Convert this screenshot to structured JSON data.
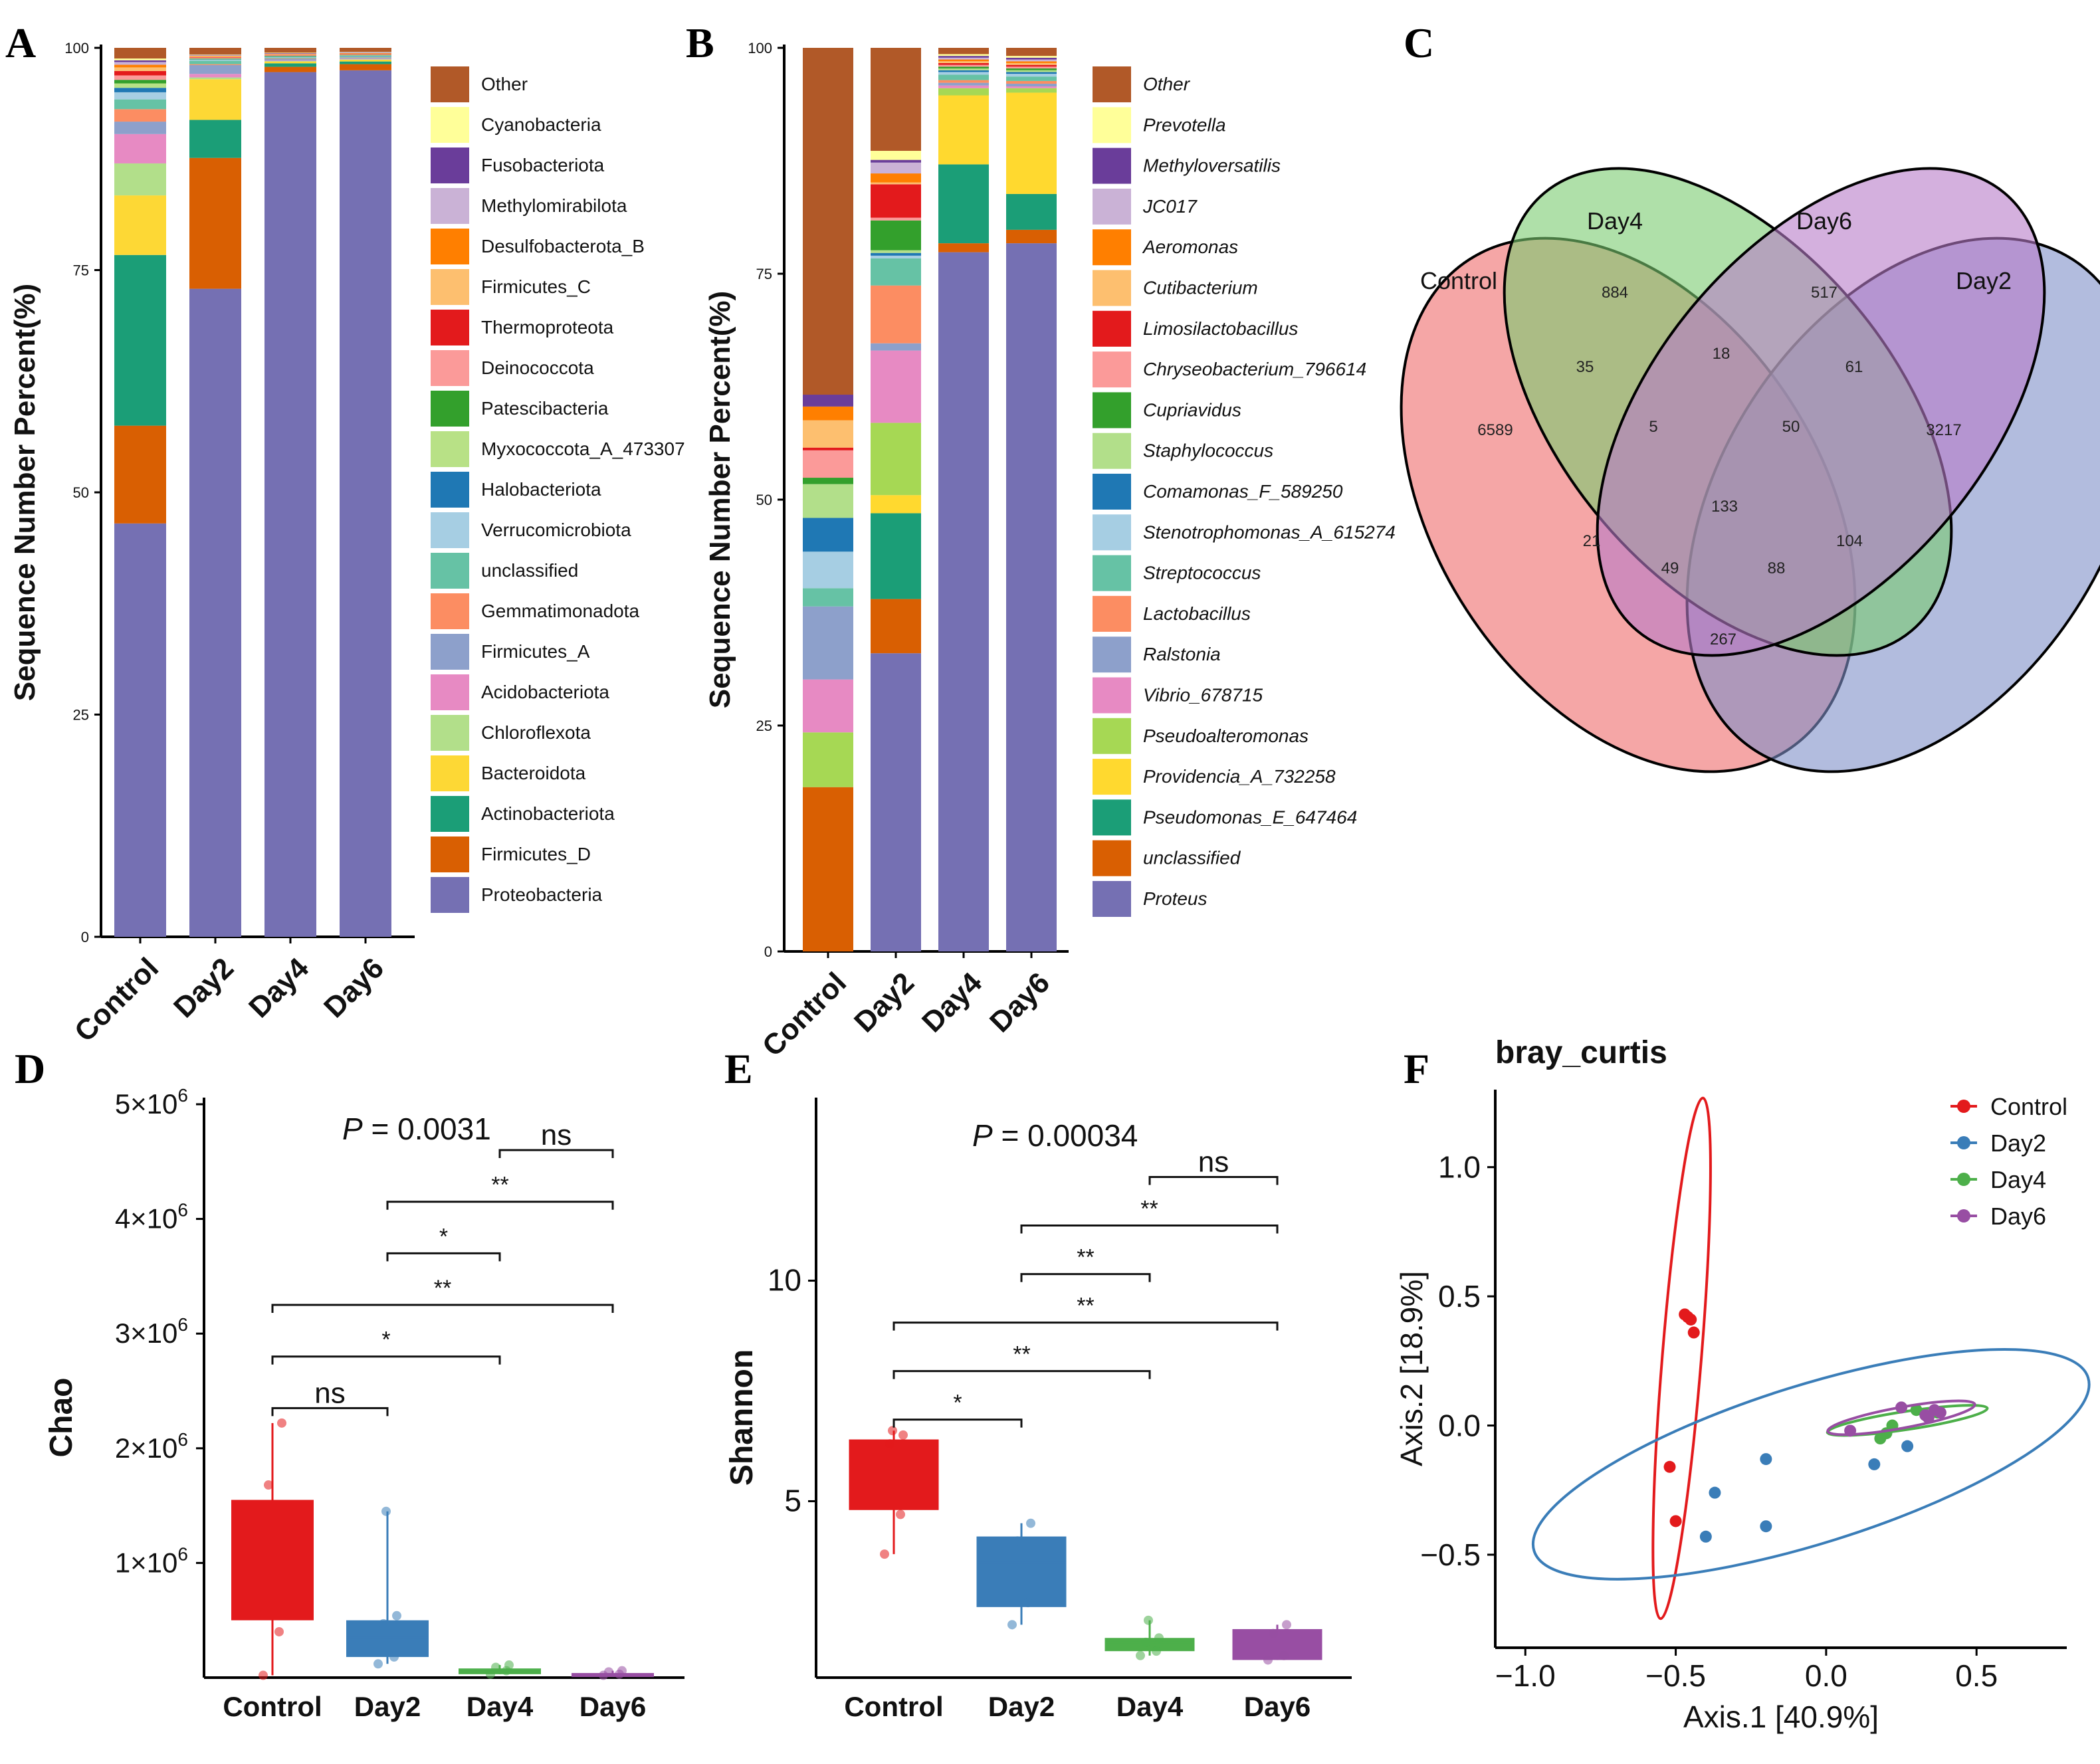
{
  "colors": {
    "Control": "#E31A1C",
    "Day2": "#3A7DB8",
    "Day4": "#4DAF4A",
    "Day6": "#984EA3",
    "Proteobacteria": "#7570B3",
    "Firmicutes_D": "#D95F02",
    "Actinobacteriota": "#1B9E77",
    "Bacteroidota": "#FDD835",
    "Chloroflexota": "#B2DF8A",
    "Acidobacteriota": "#E78AC3",
    "Firmicutes_A": "#8DA0CB",
    "Gemmatimonadota": "#FC8D62",
    "unclassified_p": "#66C2A5",
    "Verrucomicrobiota": "#A6CEE3",
    "Halobacteriota": "#1F78B4",
    "Myxococcota_A_473307": "#B8E186",
    "Patescibacteria": "#33A02C",
    "Deinococcota": "#FB9A99",
    "Thermoproteota": "#E31A1C",
    "Firmicutes_C": "#FDBF6F",
    "Desulfobacterota_B": "#FF7F00",
    "Methylomirabilota": "#CAB2D6",
    "Fusobacteriota": "#6A3D9A",
    "Cyanobacteria": "#FFFF99",
    "Other": "#B15928"
  },
  "panel_labels": [
    "A",
    "B",
    "C",
    "D",
    "E",
    "F"
  ],
  "chart_data": [
    {
      "id": "A",
      "type": "bar",
      "stacked": true,
      "ylabel": "Sequence Number Percent(%)",
      "ylim": [
        0,
        100
      ],
      "yticks": [
        "0",
        "25",
        "50",
        "75",
        "100"
      ],
      "categories": [
        "Control",
        "Day2",
        "Day4",
        "Day6"
      ],
      "legend": [
        "Other",
        "Cyanobacteria",
        "Fusobacteriota",
        "Methylomirabilota",
        "Desulfobacterota_B",
        "Firmicutes_C",
        "Thermoproteota",
        "Deinococcota",
        "Patescibacteria",
        "Myxococcota_A_473307",
        "Halobacteriota",
        "Verrucomicrobiota",
        "unclassified",
        "Gemmatimonadota",
        "Firmicutes_A",
        "Acidobacteriota",
        "Chloroflexota",
        "Bacteroidota",
        "Actinobacteriota",
        "Firmicutes_D",
        "Proteobacteria"
      ],
      "series": [
        {
          "name": "Proteobacteria",
          "values": [
            46.5,
            73.3,
            97.9,
            98.2
          ]
        },
        {
          "name": "Firmicutes_D",
          "values": [
            11.0,
            14.8,
            0.6,
            0.7
          ]
        },
        {
          "name": "Actinobacteriota",
          "values": [
            19.2,
            4.3,
            0.4,
            0.3
          ]
        },
        {
          "name": "Bacteroidota",
          "values": [
            6.7,
            4.6,
            0.2,
            0.2
          ]
        },
        {
          "name": "Chloroflexota",
          "values": [
            3.6,
            0.2,
            0.05,
            0.05
          ]
        },
        {
          "name": "Acidobacteriota",
          "values": [
            3.3,
            0.4,
            0.05,
            0.05
          ]
        },
        {
          "name": "Firmicutes_A",
          "values": [
            1.4,
            1.0,
            0.2,
            0.1
          ]
        },
        {
          "name": "Gemmatimonadota",
          "values": [
            1.4,
            0.1,
            0.05,
            0.05
          ]
        },
        {
          "name": "unclassified",
          "values": [
            1.1,
            0.4,
            0.1,
            0.1
          ]
        },
        {
          "name": "Verrucomicrobiota",
          "values": [
            0.8,
            0.1,
            0.05,
            0.05
          ]
        },
        {
          "name": "Halobacteriota",
          "values": [
            0.5,
            0.05,
            0.05,
            0.05
          ]
        },
        {
          "name": "Myxococcota_A_473307",
          "values": [
            0.5,
            0.05,
            0.05,
            0.05
          ]
        },
        {
          "name": "Patescibacteria",
          "values": [
            0.4,
            0.05,
            0.05,
            0.05
          ]
        },
        {
          "name": "Deinococcota",
          "values": [
            0.5,
            0.1,
            0.05,
            0.05
          ]
        },
        {
          "name": "Thermoproteota",
          "values": [
            0.5,
            0.05,
            0.05,
            0.05
          ]
        },
        {
          "name": "Firmicutes_C",
          "values": [
            0.4,
            0.1,
            0.05,
            0.05
          ]
        },
        {
          "name": "Desulfobacterota_B",
          "values": [
            0.3,
            0.05,
            0.05,
            0.05
          ]
        },
        {
          "name": "Methylomirabilota",
          "values": [
            0.3,
            0.05,
            0.05,
            0.05
          ]
        },
        {
          "name": "Fusobacteriota",
          "values": [
            0.2,
            0.05,
            0.05,
            0.05
          ]
        },
        {
          "name": "Cyanobacteria",
          "values": [
            0.2,
            0.05,
            0.05,
            0.05
          ]
        },
        {
          "name": "Other",
          "values": [
            1.2,
            0.75,
            0.55,
            0.45
          ]
        }
      ]
    },
    {
      "id": "B",
      "type": "bar",
      "stacked": true,
      "ylabel": "Sequence Number Percent(%)",
      "ylim": [
        0,
        100
      ],
      "yticks": [
        "0",
        "25",
        "50",
        "75",
        "100"
      ],
      "categories": [
        "Control",
        "Day2",
        "Day4",
        "Day6"
      ],
      "legend": [
        "Other",
        "Prevotella",
        "Methyloversatilis",
        "JC017",
        "Aeromonas",
        "Cutibacterium",
        "Limosilactobacillus",
        "Chryseobacterium_796614",
        "Cupriavidus",
        "Staphylococcus",
        "Comamonas_F_589250",
        "Stenotrophomonas_A_615274",
        "Streptococcus",
        "Lactobacillus",
        "Ralstonia",
        "Vibrio_678715",
        "Pseudoalteromonas",
        "Providencia_A_732258",
        "Pseudomonas_E_647464",
        "unclassified",
        "Proteus"
      ],
      "series": [
        {
          "name": "Proteus",
          "values": [
            0,
            33.0,
            78.0,
            79.0
          ]
        },
        {
          "name": "unclassified",
          "values": [
            18.0,
            6.0,
            1.0,
            1.5
          ]
        },
        {
          "name": "Pseudomonas_E_647464",
          "values": [
            0,
            9.5,
            8.8,
            4.0
          ]
        },
        {
          "name": "Providencia_A_732258",
          "values": [
            0,
            2.0,
            7.7,
            11.3
          ]
        },
        {
          "name": "Pseudoalteromonas",
          "values": [
            6.0,
            8.0,
            0.8,
            0.5
          ]
        },
        {
          "name": "Vibrio_678715",
          "values": [
            5.8,
            8.0,
            0.3,
            0.2
          ]
        },
        {
          "name": "Ralstonia",
          "values": [
            8.0,
            0.8,
            0.3,
            0.3
          ]
        },
        {
          "name": "Lactobacillus",
          "values": [
            0,
            6.4,
            0.3,
            0.3
          ]
        },
        {
          "name": "Streptococcus",
          "values": [
            2.0,
            3.0,
            0.6,
            0.5
          ]
        },
        {
          "name": "Stenotrophomonas_A_615274",
          "values": [
            4.0,
            0.3,
            0.3,
            0.3
          ]
        },
        {
          "name": "Comamonas_F_589250",
          "values": [
            3.7,
            0.3,
            0.2,
            0.2
          ]
        },
        {
          "name": "Staphylococcus",
          "values": [
            3.7,
            0.3,
            0.2,
            0.2
          ]
        },
        {
          "name": "Cupriavidus",
          "values": [
            0.7,
            3.3,
            0.2,
            0.2
          ]
        },
        {
          "name": "Chryseobacterium_796614",
          "values": [
            3.0,
            0.3,
            0.2,
            0.2
          ]
        },
        {
          "name": "Limosilactobacillus",
          "values": [
            0.3,
            3.7,
            0.2,
            0.2
          ]
        },
        {
          "name": "Cutibacterium",
          "values": [
            3.0,
            0.2,
            0.2,
            0.2
          ]
        },
        {
          "name": "Aeromonas",
          "values": [
            1.5,
            1.0,
            0.2,
            0.2
          ]
        },
        {
          "name": "JC017",
          "values": [
            0,
            1.2,
            0.2,
            0.2
          ]
        },
        {
          "name": "Methyloversatilis",
          "values": [
            1.3,
            0.3,
            0.2,
            0.2
          ]
        },
        {
          "name": "Prevotella",
          "values": [
            0,
            1.0,
            0.2,
            0.2
          ]
        },
        {
          "name": "Other",
          "values": [
            38.0,
            11.4,
            0.7,
            0.9
          ]
        }
      ]
    },
    {
      "id": "C",
      "type": "venn",
      "sets": [
        "Control",
        "Day4",
        "Day6",
        "Day2"
      ],
      "regions": [
        {
          "sets": [
            "Control"
          ],
          "value": 6589
        },
        {
          "sets": [
            "Day4"
          ],
          "value": 884
        },
        {
          "sets": [
            "Day6"
          ],
          "value": 517
        },
        {
          "sets": [
            "Day2"
          ],
          "value": 3217
        },
        {
          "sets": [
            "Control",
            "Day4"
          ],
          "value": 35
        },
        {
          "sets": [
            "Day4",
            "Day6"
          ],
          "value": 18
        },
        {
          "sets": [
            "Day6",
            "Day2"
          ],
          "value": 61
        },
        {
          "sets": [
            "Control",
            "Day4",
            "Day6"
          ],
          "value": 5
        },
        {
          "sets": [
            "Day4",
            "Day6",
            "Day2"
          ],
          "value": 50
        },
        {
          "sets": [
            "Control",
            "Day4",
            "Day6",
            "Day2"
          ],
          "value": 133
        },
        {
          "sets": [
            "Control",
            "Day6"
          ],
          "value": 21
        },
        {
          "sets": [
            "Day4",
            "Day2"
          ],
          "value": 104
        },
        {
          "sets": [
            "Control",
            "Day6",
            "Day2"
          ],
          "value": 49
        },
        {
          "sets": [
            "Control",
            "Day4",
            "Day2"
          ],
          "value": 88
        },
        {
          "sets": [
            "Control",
            "Day2"
          ],
          "value": 267
        }
      ]
    },
    {
      "id": "D",
      "type": "box",
      "ylabel": "Chao",
      "ylim": [
        0,
        5000000
      ],
      "yticks": [
        {
          "value": 1000000,
          "mant": "1",
          "exp": "6"
        },
        {
          "value": 2000000,
          "mant": "2",
          "exp": "6"
        },
        {
          "value": 3000000,
          "mant": "3",
          "exp": "6"
        },
        {
          "value": 4000000,
          "mant": "4",
          "exp": "6"
        },
        {
          "value": 5000000,
          "mant": "5",
          "exp": "6"
        }
      ],
      "categories": [
        "Control",
        "Day2",
        "Day4",
        "Day6"
      ],
      "p_text": {
        "label": "P",
        "rest": " = 0.0031"
      },
      "boxes": [
        {
          "group": "Control",
          "min": 20000,
          "q1": 500000,
          "median": 1100000,
          "q3": 1550000,
          "max": 2220000,
          "points": [
            20000,
            400000,
            1680000,
            2220000
          ]
        },
        {
          "group": "Day2",
          "min": 120000,
          "q1": 180000,
          "median": 350000,
          "q3": 500000,
          "max": 1450000,
          "points": [
            120000,
            180000,
            470000,
            540000,
            1450000
          ]
        },
        {
          "group": "Day4",
          "min": 30000,
          "q1": 30000,
          "median": 50000,
          "q3": 80000,
          "max": 110000,
          "points": [
            30000,
            60000,
            90000,
            110000
          ]
        },
        {
          "group": "Day6",
          "min": 20000,
          "q1": 20000,
          "median": 30000,
          "q3": 40000,
          "max": 60000,
          "points": [
            20000,
            30000,
            50000,
            60000
          ]
        }
      ],
      "significance": [
        {
          "from": 0,
          "to": 1,
          "label": "ns",
          "level": 2350000
        },
        {
          "from": 0,
          "to": 2,
          "label": "*",
          "level": 2800000
        },
        {
          "from": 0,
          "to": 3,
          "label": "**",
          "level": 3250000
        },
        {
          "from": 1,
          "to": 2,
          "label": "*",
          "level": 3700000
        },
        {
          "from": 1,
          "to": 3,
          "label": "**",
          "level": 4150000
        },
        {
          "from": 2,
          "to": 3,
          "label": "ns",
          "level": 4600000
        }
      ]
    },
    {
      "id": "E",
      "type": "box",
      "ylabel": "Shannon",
      "ylim": [
        1,
        14
      ],
      "yticks": [
        {
          "value": 5,
          "label": "5"
        },
        {
          "value": 10,
          "label": "10"
        }
      ],
      "categories": [
        "Control",
        "Day2",
        "Day4",
        "Day6"
      ],
      "p_text": {
        "label": "P",
        "rest": " = 0.00034"
      },
      "boxes": [
        {
          "group": "Control",
          "min": 3.8,
          "q1": 4.8,
          "median": 5.3,
          "q3": 6.4,
          "max": 6.6,
          "points": [
            3.8,
            4.7,
            6.3,
            6.5,
            6.6
          ]
        },
        {
          "group": "Day2",
          "min": 2.2,
          "q1": 2.6,
          "median": 3.6,
          "q3": 4.2,
          "max": 4.5,
          "points": [
            2.2,
            2.7,
            4.1,
            4.5
          ]
        },
        {
          "group": "Day4",
          "min": 1.5,
          "q1": 1.6,
          "median": 1.8,
          "q3": 1.9,
          "max": 2.3,
          "points": [
            1.5,
            1.6,
            1.8,
            1.9,
            2.3
          ]
        },
        {
          "group": "Day6",
          "min": 1.4,
          "q1": 1.4,
          "median": 1.8,
          "q3": 2.1,
          "max": 2.2,
          "points": [
            1.4,
            1.5,
            2.0,
            2.2
          ]
        }
      ],
      "significance": [
        {
          "from": 0,
          "to": 1,
          "label": "*",
          "level": 6.85
        },
        {
          "from": 0,
          "to": 2,
          "label": "**",
          "level": 7.95
        },
        {
          "from": 0,
          "to": 3,
          "label": "**",
          "level": 9.05
        },
        {
          "from": 1,
          "to": 2,
          "label": "**",
          "level": 10.15
        },
        {
          "from": 1,
          "to": 3,
          "label": "**",
          "level": 11.25
        },
        {
          "from": 2,
          "to": 3,
          "label": "ns",
          "level": 12.35
        }
      ]
    },
    {
      "id": "F",
      "type": "scatter",
      "title": "bray_curtis",
      "xlabel": "Axis.1 [40.9%]",
      "ylabel": "Axis.2 [18.9%]",
      "xlim": [
        -1.1,
        0.8
      ],
      "ylim": [
        -0.86,
        1.3
      ],
      "xticks": [
        {
          "value": -1.0,
          "label": "−1.0"
        },
        {
          "value": -0.5,
          "label": "−0.5"
        },
        {
          "value": 0.0,
          "label": "0.0"
        },
        {
          "value": 0.5,
          "label": "0.5"
        }
      ],
      "yticks": [
        {
          "value": -0.5,
          "label": "−0.5"
        },
        {
          "value": 0.0,
          "label": "0.0"
        },
        {
          "value": 0.5,
          "label": "0.5"
        },
        {
          "value": 1.0,
          "label": "1.0"
        }
      ],
      "legend": [
        "Control",
        "Day2",
        "Day4",
        "Day6"
      ],
      "series": [
        {
          "name": "Control",
          "points": [
            [
              -0.47,
              0.43
            ],
            [
              -0.46,
              0.42
            ],
            [
              -0.45,
              0.41
            ],
            [
              -0.44,
              0.36
            ],
            [
              -0.52,
              -0.16
            ],
            [
              -0.5,
              -0.37
            ]
          ],
          "ellipse": {
            "cx": -0.48,
            "cy": 0.26,
            "rx": 1.01,
            "ry": 0.065,
            "angle_deg": 86
          }
        },
        {
          "name": "Day2",
          "points": [
            [
              -0.2,
              -0.13
            ],
            [
              -0.37,
              -0.26
            ],
            [
              -0.4,
              -0.43
            ],
            [
              -0.2,
              -0.39
            ],
            [
              0.16,
              -0.15
            ],
            [
              0.27,
              -0.08
            ]
          ],
          "ellipse": {
            "cx": -0.05,
            "cy": -0.15,
            "rx": 0.98,
            "ry": 0.3,
            "angle_deg": 20
          }
        },
        {
          "name": "Day4",
          "points": [
            [
              0.2,
              -0.03
            ],
            [
              0.22,
              0.0
            ],
            [
              0.3,
              0.06
            ],
            [
              0.37,
              0.05
            ],
            [
              0.18,
              -0.05
            ]
          ],
          "ellipse": {
            "cx": 0.27,
            "cy": 0.02,
            "rx": 0.27,
            "ry": 0.035,
            "angle_deg": 10
          }
        },
        {
          "name": "Day6",
          "points": [
            [
              0.08,
              -0.02
            ],
            [
              0.25,
              0.07
            ],
            [
              0.33,
              0.04
            ],
            [
              0.36,
              0.06
            ],
            [
              0.38,
              0.05
            ],
            [
              0.34,
              0.03
            ]
          ],
          "ellipse": {
            "cx": 0.25,
            "cy": 0.03,
            "rx": 0.25,
            "ry": 0.04,
            "angle_deg": 12
          }
        }
      ]
    }
  ]
}
